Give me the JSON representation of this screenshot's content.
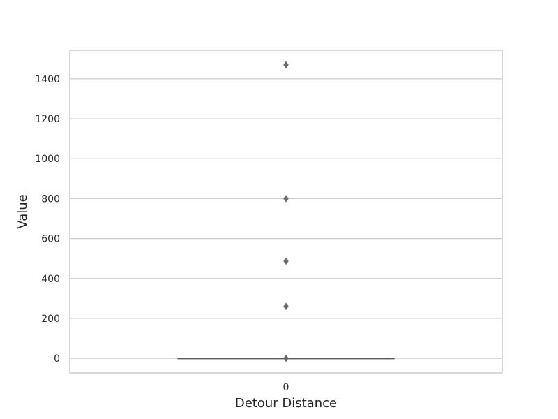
{
  "chart_data": {
    "type": "box",
    "title": "",
    "xlabel": "Detour Distance",
    "ylabel": "Value",
    "categories": [
      "0"
    ],
    "ylim": [
      -73,
      1543
    ],
    "yticks": [
      0,
      200,
      400,
      600,
      800,
      1000,
      1200,
      1400
    ],
    "grid": "horizontal",
    "box": {
      "category": "0",
      "q1": 0,
      "median": 0,
      "q3": 0,
      "whisker_low": 0,
      "whisker_high": 0
    },
    "outliers": [
      1470,
      800,
      487,
      260,
      0
    ],
    "colors": {
      "grid": "#cccccc",
      "frame": "#cccccc",
      "box_line": "#5f5f5f",
      "outlier": "#6a6a6a",
      "text": "#262626"
    }
  }
}
